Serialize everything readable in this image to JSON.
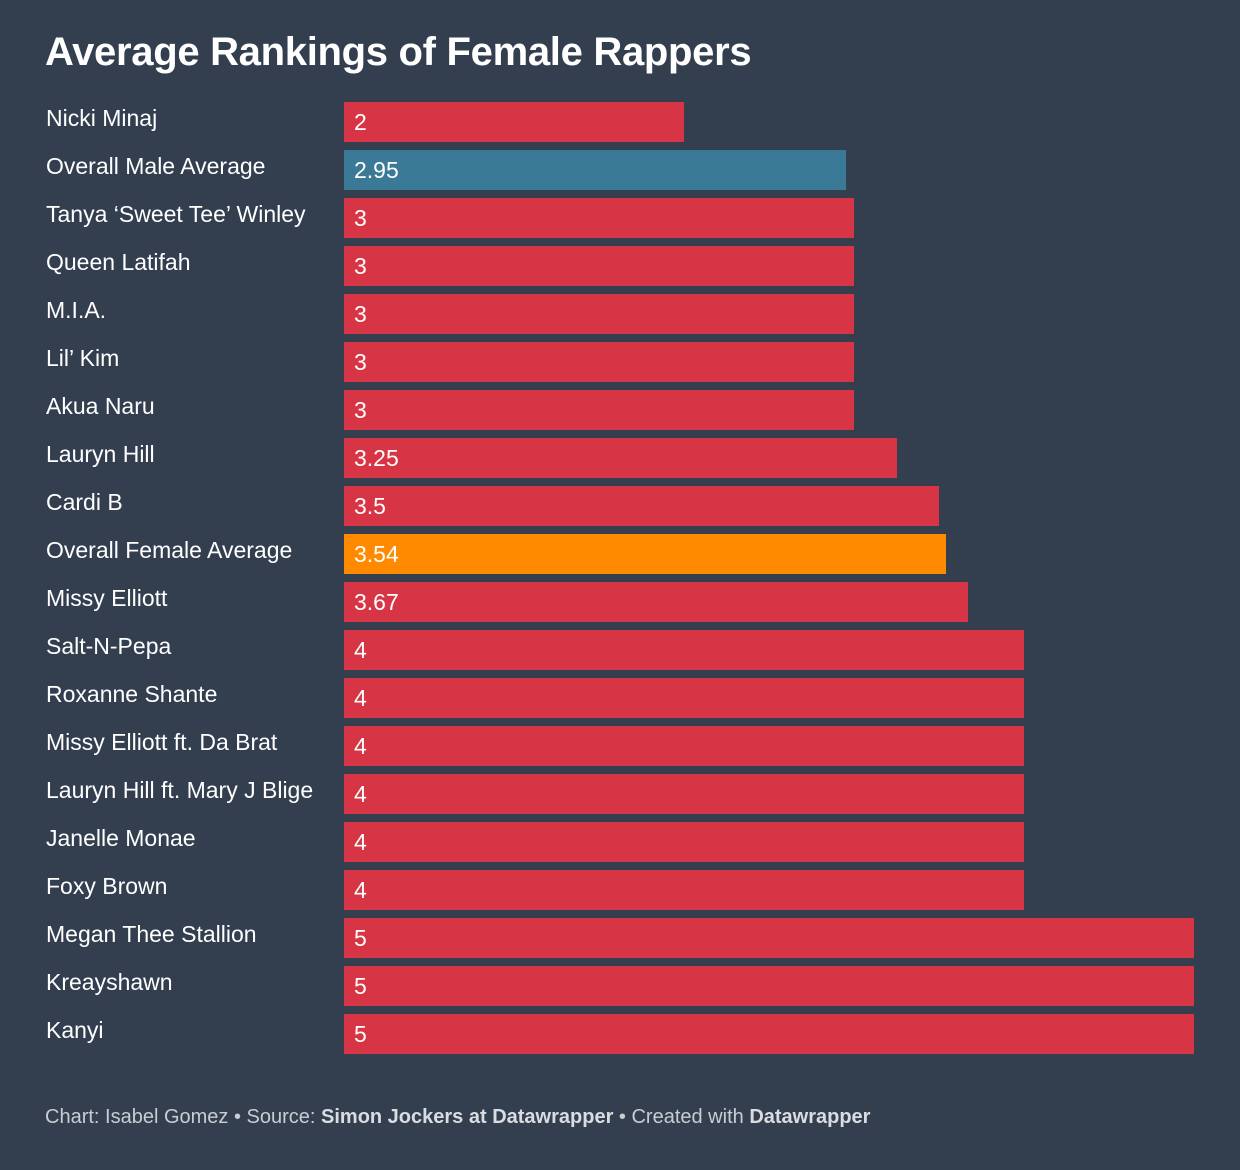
{
  "title": "Average Rankings of Female Rappers",
  "colors": {
    "background": "#333e4f",
    "bar_default": "#d73545",
    "bar_male_average": "#3a7a96",
    "bar_female_average": "#ff8a00"
  },
  "chart_data": {
    "type": "bar",
    "orientation": "horizontal",
    "title": "Average Rankings of Female Rappers",
    "xlim": [
      0,
      5
    ],
    "grid": false,
    "categories": [
      "Nicki Minaj",
      "Overall Male Average",
      "Tanya ‘Sweet Tee’ Winley",
      "Queen Latifah",
      "M.I.A.",
      "Lil’ Kim",
      "Akua Naru",
      "Lauryn Hill",
      "Cardi B",
      "Overall Female Average",
      "Missy Elliott",
      "Salt-N-Pepa",
      "Roxanne Shante",
      "Missy Elliott ft. Da Brat",
      "Lauryn Hill ft. Mary J Blige",
      "Janelle Monae",
      "Foxy Brown",
      "Megan Thee Stallion",
      "Kreayshawn",
      "Kanyi"
    ],
    "values": [
      2,
      2.95,
      3,
      3,
      3,
      3,
      3,
      3.25,
      3.5,
      3.54,
      3.67,
      4,
      4,
      4,
      4,
      4,
      4,
      5,
      5,
      5
    ],
    "value_labels": [
      "2",
      "2.95",
      "3",
      "3",
      "3",
      "3",
      "3",
      "3.25",
      "3.5",
      "3.54",
      "3.67",
      "4",
      "4",
      "4",
      "4",
      "4",
      "4",
      "5",
      "5",
      "5"
    ],
    "highlights": {
      "Overall Male Average": "#3a7a96",
      "Overall Female Average": "#ff8a00"
    }
  },
  "footer": {
    "chart_prefix": "Chart: Isabel Gomez • Source: ",
    "source": "Simon Jockers at Datawrapper",
    "created_prefix": " • Created with ",
    "created_with": "Datawrapper"
  }
}
